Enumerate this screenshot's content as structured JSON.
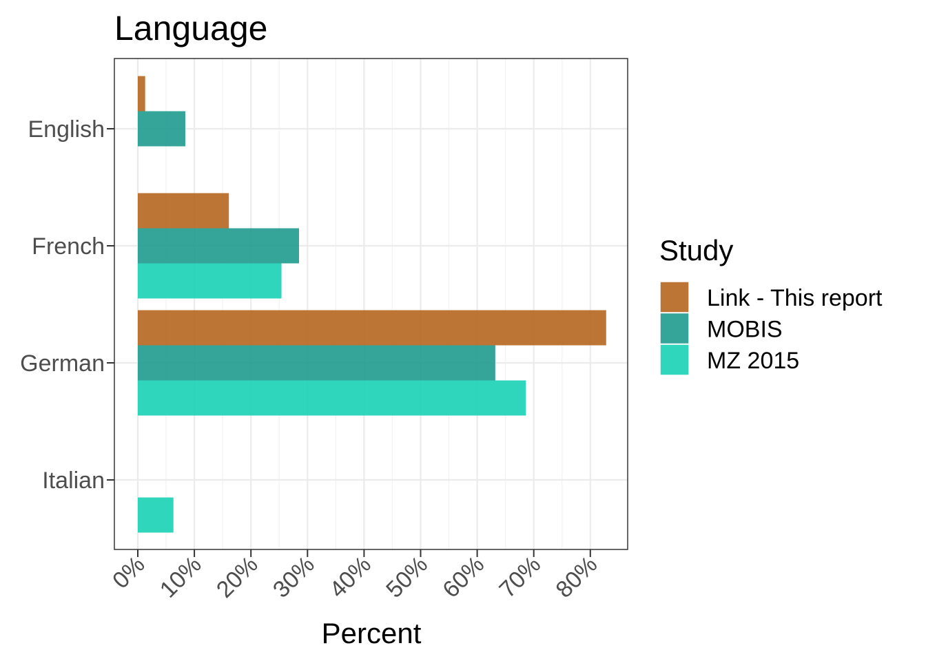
{
  "chart_data": {
    "type": "bar",
    "orientation": "horizontal",
    "title": "Language",
    "xlabel": "Percent",
    "ylabel": "",
    "categories": [
      "English",
      "French",
      "German",
      "Italian"
    ],
    "xlim": [
      0,
      86
    ],
    "x_ticks": [
      0,
      10,
      20,
      30,
      40,
      50,
      60,
      70,
      80
    ],
    "x_tick_labels": [
      "0%",
      "10%",
      "20%",
      "30%",
      "40%",
      "50%",
      "60%",
      "70%",
      "80%"
    ],
    "series": [
      {
        "name": "Link - This report",
        "color": "#b5661f",
        "values": [
          1.3,
          16.1,
          82.8,
          null
        ]
      },
      {
        "name": "MOBIS",
        "color": "#1f9a8e",
        "values": [
          8.4,
          28.5,
          63.2,
          null
        ]
      },
      {
        "name": "MZ 2015",
        "color": "#19d1b5",
        "values": [
          null,
          25.4,
          68.6,
          6.3
        ]
      }
    ],
    "legend": {
      "title": "Study",
      "position": "right"
    },
    "grid": true
  }
}
